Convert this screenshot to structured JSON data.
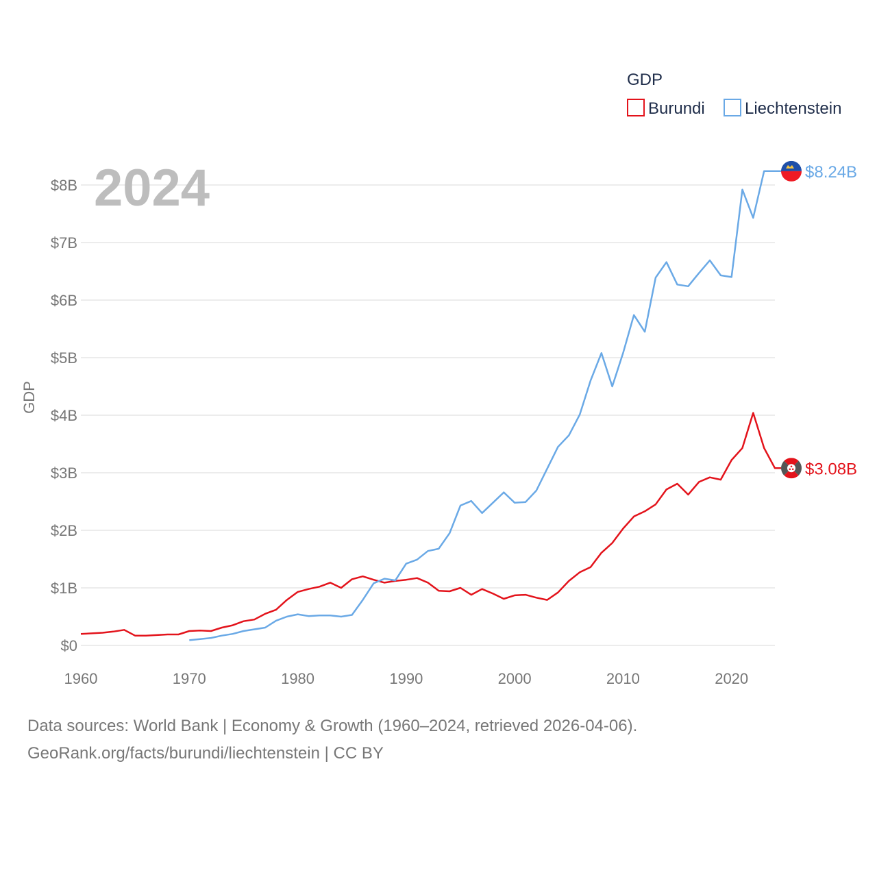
{
  "chart_data": {
    "type": "line",
    "legend_title": "GDP",
    "year_label": "2024",
    "ylabel": "GDP",
    "xlim": [
      1960,
      2024
    ],
    "ylim": [
      0,
      8.5
    ],
    "x_ticks": [
      1960,
      1970,
      1980,
      1990,
      2000,
      2010,
      2020
    ],
    "x_tick_labels": [
      "1960",
      "1970",
      "1980",
      "1990",
      "2000",
      "2010",
      "2020"
    ],
    "y_ticks": [
      0,
      1,
      2,
      3,
      4,
      5,
      6,
      7,
      8
    ],
    "y_tick_labels": [
      "$0",
      "$1B",
      "$2B",
      "$3B",
      "$4B",
      "$5B",
      "$6B",
      "$7B",
      "$8B"
    ],
    "units": "billions USD",
    "series": [
      {
        "name": "Burundi",
        "color": "#e3131b",
        "end_label": "$3.08B",
        "flag_icon": "burundi-flag-icon",
        "x": [
          1960,
          1961,
          1962,
          1963,
          1964,
          1965,
          1966,
          1967,
          1968,
          1969,
          1970,
          1971,
          1972,
          1973,
          1974,
          1975,
          1976,
          1977,
          1978,
          1979,
          1980,
          1981,
          1982,
          1983,
          1984,
          1985,
          1986,
          1987,
          1988,
          1989,
          1990,
          1991,
          1992,
          1993,
          1994,
          1995,
          1996,
          1997,
          1998,
          1999,
          2000,
          2001,
          2002,
          2003,
          2004,
          2005,
          2006,
          2007,
          2008,
          2009,
          2010,
          2011,
          2012,
          2013,
          2014,
          2015,
          2016,
          2017,
          2018,
          2019,
          2020,
          2021,
          2022,
          2023,
          2024
        ],
        "values": [
          0.2,
          0.21,
          0.22,
          0.24,
          0.27,
          0.17,
          0.17,
          0.18,
          0.19,
          0.19,
          0.25,
          0.26,
          0.25,
          0.31,
          0.35,
          0.42,
          0.45,
          0.55,
          0.62,
          0.79,
          0.93,
          0.98,
          1.02,
          1.09,
          1.0,
          1.15,
          1.2,
          1.14,
          1.09,
          1.12,
          1.14,
          1.17,
          1.09,
          0.95,
          0.94,
          1.0,
          0.88,
          0.98,
          0.9,
          0.81,
          0.87,
          0.88,
          0.83,
          0.79,
          0.92,
          1.12,
          1.27,
          1.36,
          1.61,
          1.78,
          2.03,
          2.24,
          2.33,
          2.45,
          2.71,
          2.81,
          2.62,
          2.84,
          2.92,
          2.88,
          3.22,
          3.43,
          4.04,
          3.43,
          3.08
        ]
      },
      {
        "name": "Liechtenstein",
        "color": "#6aa9e6",
        "end_label": "$8.24B",
        "flag_icon": "liechtenstein-flag-icon",
        "x": [
          1970,
          1971,
          1972,
          1973,
          1974,
          1975,
          1976,
          1977,
          1978,
          1979,
          1980,
          1981,
          1982,
          1983,
          1984,
          1985,
          1986,
          1987,
          1988,
          1989,
          1990,
          1991,
          1992,
          1993,
          1994,
          1995,
          1996,
          1997,
          1998,
          1999,
          2000,
          2001,
          2002,
          2003,
          2004,
          2005,
          2006,
          2007,
          2008,
          2009,
          2010,
          2011,
          2012,
          2013,
          2014,
          2015,
          2016,
          2017,
          2018,
          2019,
          2020,
          2021,
          2022,
          2023,
          2024
        ],
        "values": [
          0.09,
          0.11,
          0.13,
          0.17,
          0.2,
          0.25,
          0.28,
          0.31,
          0.43,
          0.5,
          0.54,
          0.51,
          0.52,
          0.52,
          0.5,
          0.53,
          0.79,
          1.08,
          1.16,
          1.13,
          1.42,
          1.49,
          1.64,
          1.68,
          1.95,
          2.43,
          2.51,
          2.3,
          2.48,
          2.66,
          2.48,
          2.49,
          2.69,
          3.07,
          3.45,
          3.65,
          4.01,
          4.6,
          5.08,
          4.5,
          5.08,
          5.74,
          5.45,
          6.39,
          6.66,
          6.27,
          6.24,
          6.47,
          6.69,
          6.43,
          6.4,
          7.92,
          7.43,
          8.24,
          8.24
        ]
      }
    ]
  },
  "footer": {
    "line1": "Data sources: World Bank | Economy & Growth (1960–2024, retrieved 2026-04-06).",
    "line2": "GeoRank.org/facts/burundi/liechtenstein | CC BY"
  }
}
